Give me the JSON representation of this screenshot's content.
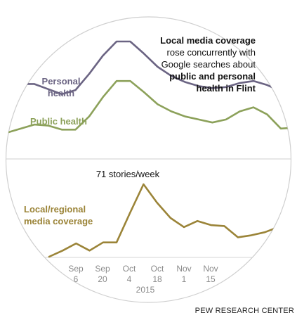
{
  "chart_data": {
    "type": "line",
    "annotation": {
      "bold_1": "Local media coverage",
      "line_2": "rose concurrently with",
      "line_3": "Google searches about",
      "bold_4": "public and personal",
      "bold_5": "health in Flint"
    },
    "peak_label": "71 stories/week",
    "year_label": "2015",
    "x_ticks": [
      {
        "month": "Sep",
        "day": "6"
      },
      {
        "month": "Sep",
        "day": "20"
      },
      {
        "month": "Oct",
        "day": "4"
      },
      {
        "month": "Oct",
        "day": "18"
      },
      {
        "month": "Nov",
        "day": "1"
      },
      {
        "month": "Nov",
        "day": "15"
      }
    ],
    "series": [
      {
        "name": "Personal health",
        "label_lines": [
          "Personal",
          "health"
        ],
        "color": "#6b6483",
        "values": [
          55,
          58,
          58,
          53,
          48,
          52,
          68,
          86,
          100,
          100,
          88,
          75,
          66,
          60,
          56,
          54,
          55,
          59,
          61,
          57,
          51,
          58
        ]
      },
      {
        "name": "Public health",
        "label_lines": [
          "Public health"
        ],
        "color": "#8ca15a",
        "values": [
          10,
          14,
          18,
          17,
          13,
          13,
          26,
          45,
          61,
          61,
          50,
          38,
          31,
          26,
          23,
          20,
          23,
          31,
          35,
          28,
          14,
          15
        ]
      },
      {
        "name": "Local/regional media coverage",
        "label_lines": [
          "Local/regional",
          "media coverage"
        ],
        "color": "#9b8438",
        "values": [
          0,
          6,
          13,
          6,
          14,
          14,
          43,
          71,
          53,
          38,
          29,
          35,
          31,
          30,
          19,
          21,
          24,
          29,
          34
        ]
      }
    ]
  },
  "credit": "PEW RESEARCH CENTER"
}
